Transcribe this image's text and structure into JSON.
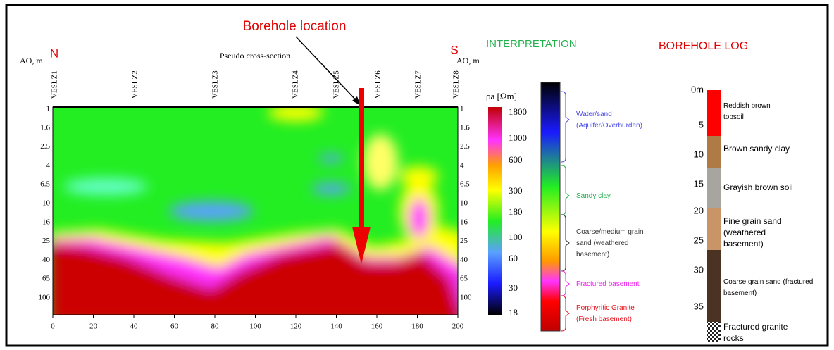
{
  "title": "Borehole location",
  "section": {
    "title": "Pseudo cross-section",
    "north": "N",
    "south": "S",
    "left_axis_label": "AO, m",
    "right_axis_label": "AO, m",
    "stations": [
      "VESLZ1",
      "VESLZ2",
      "VESLZ3",
      "VESLZ4",
      "VESLZ5",
      "VESLZ6",
      "VESLZ7",
      "VESLZ8"
    ],
    "depths": [
      "1",
      "1.6",
      "2.5",
      "4",
      "6.5",
      "10",
      "16",
      "25",
      "40",
      "65",
      "100"
    ],
    "distances": [
      0,
      20,
      40,
      60,
      80,
      100,
      120,
      140,
      160,
      180,
      200
    ]
  },
  "colorbar": {
    "label": "ρa [Ωm]",
    "ticks": [
      1800,
      1000,
      600,
      300,
      180,
      100,
      60,
      30,
      18
    ]
  },
  "interpretation": {
    "title": "INTERPRETATION",
    "units": [
      {
        "label": "Water/sand (Aquifer/Overburden)",
        "color": "#4a4ae8"
      },
      {
        "label": "Sandy clay",
        "color": "#22b14c"
      },
      {
        "label": "Coarse/medium grain sand (weathered basement)",
        "color": "#333333"
      },
      {
        "label": "Fractured basement",
        "color": "#ee22ee"
      },
      {
        "label": "Porphyritic Granite (Fresh basement)",
        "color": "#e8141e"
      }
    ]
  },
  "borehole_log": {
    "title": "BOREHOLE LOG",
    "depth_ticks": [
      "0m",
      "5",
      "10",
      "15",
      "20",
      "25",
      "30",
      "35"
    ],
    "layers": [
      {
        "label": "Reddish brown topsoil",
        "color": "#ff0000"
      },
      {
        "label": "Brown sandy clay",
        "color": "#b07a45"
      },
      {
        "label": "Grayish brown soil",
        "color": "#a8a4a0"
      },
      {
        "label": "Fine grain sand (weathered basement)",
        "color": "#c99466"
      },
      {
        "label": "Coarse grain sand (fractured basement)",
        "color": "#4a3322"
      },
      {
        "label": "Fractured granite rocks",
        "color": "#555555"
      }
    ]
  }
}
